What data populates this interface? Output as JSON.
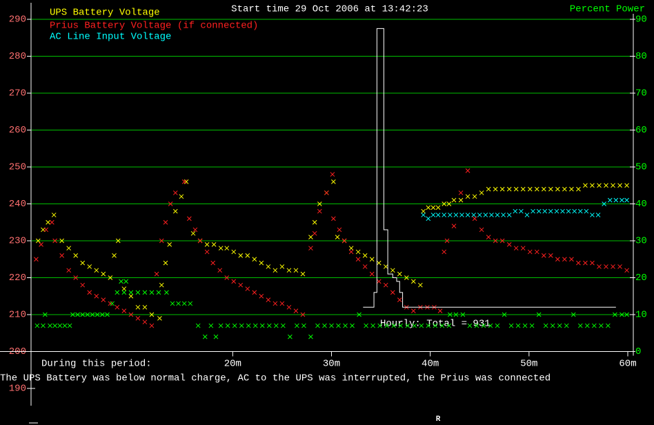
{
  "chart_data": {
    "type": "scatter",
    "title": "Start time 29 Oct 2006 at 13:42:23",
    "y2label": "Percent Power",
    "period_label": "During this period:",
    "summary": "The UPS Battery was below normal charge, AC to the UPS was interrupted, the Prius was connected",
    "hourly_label": "Hourly: Total = 931",
    "footer_marker": "R",
    "marker": "x",
    "grid": true,
    "grid_color": "#00c000",
    "ytick_color": "#ff7070",
    "y2tick_color": "#00ff00",
    "x_axis_at": 200,
    "xlim": [
      0,
      60
    ],
    "xticks": [
      {
        "value": 20,
        "label": "20m"
      },
      {
        "value": 30,
        "label": "30m"
      },
      {
        "value": 40,
        "label": "40m"
      },
      {
        "value": 50,
        "label": "50m"
      },
      {
        "value": 60,
        "label": "60m"
      }
    ],
    "ylim": [
      190,
      290
    ],
    "yticks": [
      190,
      200,
      210,
      220,
      230,
      240,
      250,
      260,
      270,
      280,
      290
    ],
    "y2lim": [
      -10,
      90
    ],
    "y2ticks": [
      0,
      10,
      20,
      30,
      40,
      50,
      60,
      70,
      80,
      90
    ],
    "series": [
      {
        "name": "UPS Battery Voltage",
        "color": "#ffff00",
        "x": [
          0.3,
          0.8,
          1.3,
          1.9,
          2.7,
          3.4,
          4.1,
          4.8,
          5.5,
          6.2,
          6.9,
          7.6,
          8.0,
          8.4,
          9.0,
          9.7,
          10.4,
          11.1,
          11.8,
          12.6,
          12.8,
          13.2,
          13.6,
          14.2,
          14.8,
          15.3,
          16.0,
          16.7,
          17.4,
          18.1,
          18.8,
          19.4,
          20.1,
          20.8,
          21.5,
          22.2,
          22.9,
          23.6,
          24.3,
          25.0,
          25.7,
          26.4,
          27.1,
          27.9,
          28.3,
          28.8,
          29.5,
          30.2,
          30.6,
          31.3,
          32.0,
          32.7,
          33.4,
          34.1,
          34.8,
          35.5,
          36.2,
          36.9,
          37.6,
          38.3,
          39.0,
          39.3,
          39.8,
          40.3,
          40.8,
          41.4,
          41.9,
          42.4,
          43.1,
          43.8,
          44.5,
          45.2,
          45.9,
          46.6,
          47.3,
          48.0,
          48.7,
          49.4,
          50.1,
          50.8,
          51.5,
          52.2,
          52.9,
          53.6,
          54.3,
          55.0,
          55.7,
          56.4,
          57.1,
          57.8,
          58.5,
          59.2,
          59.9
        ],
        "values": [
          230,
          233,
          235,
          237,
          230,
          228,
          226,
          224,
          223,
          222,
          221,
          220,
          226,
          230,
          217,
          215,
          212,
          212,
          210,
          209,
          218,
          224,
          229,
          238,
          242,
          246,
          232,
          230,
          229,
          229,
          228,
          228,
          227,
          226,
          226,
          225,
          224,
          223,
          222,
          223,
          222,
          222,
          221,
          231,
          235,
          240,
          243,
          246,
          231,
          230,
          228,
          227,
          226,
          225,
          224,
          223,
          222,
          221,
          220,
          219,
          218,
          238,
          239,
          239,
          239,
          240,
          240,
          241,
          241,
          242,
          242,
          243,
          244,
          244,
          244,
          244,
          244,
          244,
          244,
          244,
          244,
          244,
          244,
          244,
          244,
          244,
          245,
          245,
          245,
          245,
          245,
          245,
          245
        ]
      },
      {
        "name": "Prius Battery Voltage (if connected)",
        "color": "#ff2020",
        "x": [
          0.1,
          0.6,
          1.1,
          1.7,
          2.0,
          2.7,
          3.4,
          4.1,
          4.8,
          5.5,
          6.2,
          6.9,
          7.6,
          8.3,
          9.0,
          9.7,
          10.4,
          11.1,
          11.8,
          12.3,
          12.8,
          13.2,
          13.7,
          14.2,
          15.1,
          15.6,
          16.2,
          16.7,
          17.4,
          18.0,
          18.7,
          19.4,
          20.1,
          20.8,
          21.5,
          22.2,
          22.9,
          23.6,
          24.3,
          25.0,
          25.7,
          26.4,
          27.1,
          27.9,
          28.3,
          28.8,
          29.5,
          30.1,
          30.2,
          30.8,
          31.3,
          32.0,
          32.7,
          33.4,
          34.1,
          34.8,
          35.5,
          36.2,
          36.9,
          37.6,
          38.3,
          39.0,
          39.7,
          40.4,
          41.0,
          41.4,
          41.7,
          42.4,
          43.1,
          43.8,
          44.5,
          45.2,
          45.9,
          46.6,
          47.3,
          48.0,
          48.7,
          49.4,
          50.1,
          50.8,
          51.5,
          52.2,
          52.9,
          53.6,
          54.3,
          55.0,
          55.7,
          56.4,
          57.1,
          57.8,
          58.5,
          59.2,
          59.9
        ],
        "values": [
          225,
          229,
          233,
          235,
          230,
          226,
          222,
          220,
          218,
          216,
          215,
          214,
          213,
          212,
          211,
          210,
          209,
          208,
          207,
          221,
          230,
          235,
          240,
          243,
          246,
          236,
          233,
          230,
          227,
          224,
          222,
          220,
          219,
          218,
          217,
          216,
          215,
          214,
          213,
          213,
          212,
          211,
          210,
          228,
          232,
          238,
          243,
          248,
          236,
          233,
          230,
          227,
          225,
          223,
          221,
          219,
          218,
          216,
          214,
          212,
          211,
          212,
          212,
          212,
          211,
          227,
          230,
          234,
          243,
          249,
          236,
          233,
          231,
          230,
          230,
          229,
          228,
          228,
          227,
          227,
          226,
          226,
          225,
          225,
          225,
          224,
          224,
          224,
          223,
          223,
          223,
          223,
          222
        ]
      },
      {
        "name": "AC Line Input Voltage",
        "color": "#00ffff",
        "x": [
          39.3,
          39.8,
          40.3,
          40.8,
          41.4,
          42.0,
          42.6,
          43.2,
          43.8,
          44.4,
          45.0,
          45.6,
          46.2,
          46.8,
          47.4,
          48.0,
          48.6,
          49.2,
          49.8,
          50.4,
          51.0,
          51.6,
          52.2,
          52.8,
          53.4,
          54.0,
          54.6,
          55.2,
          55.8,
          56.4,
          57.0,
          57.6,
          58.2,
          58.8,
          59.4,
          59.9
        ],
        "values": [
          237,
          236,
          237,
          237,
          237,
          237,
          237,
          237,
          237,
          237,
          237,
          237,
          237,
          237,
          237,
          237,
          238,
          238,
          237,
          238,
          238,
          238,
          238,
          238,
          238,
          238,
          238,
          238,
          238,
          237,
          237,
          240,
          241,
          241,
          241,
          241
        ]
      },
      {
        "color": "#00ff00",
        "axis": "y2",
        "x": [
          0.2,
          0.8,
          1.0,
          1.5,
          2.0,
          2.5,
          3.0,
          3.5,
          3.8,
          4.3,
          4.8,
          5.3,
          5.8,
          6.3,
          6.8,
          7.3,
          7.8,
          8.3,
          8.7,
          9.2,
          9.0,
          9.7,
          10.4,
          11.1,
          11.8,
          12.5,
          13.3,
          13.9,
          14.5,
          15.1,
          15.7,
          16.5,
          17.2,
          17.8,
          18.3,
          18.8,
          19.5,
          20.2,
          20.9,
          21.6,
          22.3,
          23.0,
          23.7,
          24.4,
          25.1,
          25.8,
          26.5,
          27.2,
          27.9,
          28.6,
          29.3,
          30.0,
          30.7,
          31.4,
          32.1,
          32.8,
          33.5,
          34.2,
          34.9,
          35.6,
          36.3,
          37.0,
          37.7,
          38.4,
          39.1,
          39.8,
          40.5,
          41.2,
          41.9,
          42.0,
          42.6,
          43.3,
          44.0,
          44.7,
          45.4,
          46.1,
          46.8,
          47.5,
          48.2,
          48.9,
          49.6,
          50.3,
          51.0,
          51.7,
          52.4,
          53.1,
          53.8,
          54.5,
          55.2,
          55.9,
          56.6,
          57.3,
          58.0,
          58.7,
          59.4,
          59.9
        ],
        "values": [
          7,
          7,
          10,
          7,
          7,
          7,
          7,
          7,
          10,
          10,
          10,
          10,
          10,
          10,
          10,
          10,
          13,
          16,
          19,
          19,
          16,
          16,
          16,
          16,
          16,
          16,
          16,
          13,
          13,
          13,
          13,
          7,
          4,
          7,
          4,
          7,
          7,
          7,
          7,
          7,
          7,
          7,
          7,
          7,
          7,
          4,
          7,
          7,
          4,
          7,
          7,
          7,
          7,
          7,
          7,
          10,
          7,
          7,
          7,
          7,
          7,
          7,
          7,
          7,
          7,
          7,
          7,
          7,
          7,
          10,
          10,
          10,
          7,
          7,
          7,
          7,
          7,
          10,
          7,
          7,
          7,
          7,
          10,
          7,
          7,
          7,
          7,
          10,
          7,
          7,
          7,
          7,
          7,
          10,
          10,
          10
        ]
      },
      {
        "type": "line",
        "color": "#ffffff",
        "x": [
          33.2,
          34.3,
          34.3,
          34.6,
          34.6,
          35.3,
          35.3,
          35.7,
          35.7,
          36.2,
          36.2,
          36.6,
          36.6,
          36.9,
          36.9,
          37.2,
          37.2,
          58.8
        ],
        "values": [
          212,
          212,
          216,
          216,
          287.5,
          287.5,
          233,
          233,
          221,
          221,
          220,
          220,
          219,
          219,
          216,
          216,
          212,
          212
        ]
      }
    ]
  }
}
